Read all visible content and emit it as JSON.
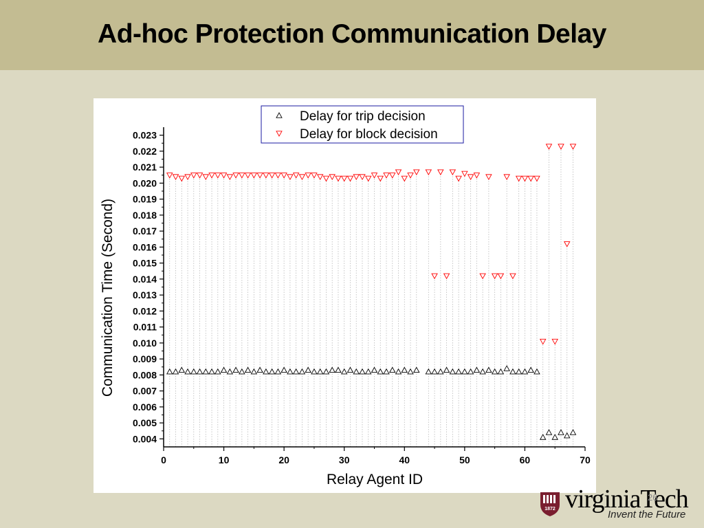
{
  "slide": {
    "title": "Ad-hoc Protection Communication Delay",
    "page_number": "26"
  },
  "logo": {
    "wordmark": "virginiaTech",
    "tagline": "Invent the Future",
    "seal_year": "1872"
  },
  "colors": {
    "title_bar": "#c3bc92",
    "background": "#dcd9c2",
    "trip_series": "#000000",
    "block_series": "#ff0000",
    "legend_border": "#1a1aa0",
    "logo_maroon": "#7a1e2f"
  },
  "chart_data": {
    "type": "scatter",
    "title": "",
    "xlabel": "Relay Agent ID",
    "ylabel": "Communication Time (Second)",
    "xlim": [
      0,
      70
    ],
    "ylim": [
      0.0035,
      0.0235
    ],
    "xticks": [
      0,
      10,
      20,
      30,
      40,
      50,
      60,
      70
    ],
    "yticks": [
      "0.004",
      "0.005",
      "0.006",
      "0.007",
      "0.008",
      "0.009",
      "0.010",
      "0.011",
      "0.012",
      "0.013",
      "0.014",
      "0.015",
      "0.016",
      "0.017",
      "0.018",
      "0.019",
      "0.020",
      "0.021",
      "0.022",
      "0.023"
    ],
    "grid": "vertical dotted drop lines at each relay agent",
    "legend_position": "top-center",
    "series": [
      {
        "name": "Delay for trip decision",
        "marker": "triangle-up",
        "color": "#000000",
        "x": [
          1,
          2,
          3,
          4,
          5,
          6,
          7,
          8,
          9,
          10,
          11,
          12,
          13,
          14,
          15,
          16,
          17,
          18,
          19,
          20,
          21,
          22,
          23,
          24,
          25,
          26,
          27,
          28,
          29,
          30,
          31,
          32,
          33,
          34,
          35,
          36,
          37,
          38,
          39,
          40,
          41,
          42,
          44,
          45,
          46,
          47,
          48,
          49,
          50,
          51,
          52,
          53,
          54,
          55,
          56,
          57,
          58,
          59,
          60,
          61,
          62,
          63,
          64,
          65,
          66,
          67,
          68
        ],
        "y": [
          0.0082,
          0.0082,
          0.0083,
          0.0082,
          0.0082,
          0.0082,
          0.0082,
          0.0082,
          0.0082,
          0.0083,
          0.0082,
          0.0083,
          0.0082,
          0.0083,
          0.0082,
          0.0083,
          0.0082,
          0.0082,
          0.0082,
          0.0083,
          0.0082,
          0.0082,
          0.0082,
          0.0083,
          0.0082,
          0.0082,
          0.0082,
          0.0083,
          0.0083,
          0.0082,
          0.0083,
          0.0082,
          0.0082,
          0.0082,
          0.0083,
          0.0082,
          0.0082,
          0.0083,
          0.0082,
          0.0083,
          0.0082,
          0.0083,
          0.0082,
          0.0082,
          0.0082,
          0.0083,
          0.0082,
          0.0082,
          0.0082,
          0.0082,
          0.0083,
          0.0082,
          0.0083,
          0.0082,
          0.0082,
          0.0084,
          0.0082,
          0.0082,
          0.0082,
          0.0083,
          0.0082,
          0.0041,
          0.0044,
          0.0041,
          0.0044,
          0.0042,
          0.0044
        ]
      },
      {
        "name": "Delay for block decision",
        "marker": "triangle-down",
        "color": "#ff0000",
        "x": [
          1,
          2,
          3,
          4,
          5,
          6,
          7,
          8,
          9,
          10,
          11,
          12,
          13,
          14,
          15,
          16,
          17,
          18,
          19,
          20,
          21,
          22,
          23,
          24,
          25,
          26,
          27,
          28,
          29,
          30,
          31,
          32,
          33,
          34,
          35,
          36,
          37,
          38,
          39,
          40,
          41,
          42,
          44,
          45,
          46,
          47,
          48,
          49,
          50,
          51,
          52,
          53,
          54,
          55,
          56,
          57,
          58,
          59,
          60,
          61,
          62,
          63,
          64,
          65,
          66,
          67,
          68
        ],
        "y": [
          0.0205,
          0.0204,
          0.0203,
          0.0204,
          0.0205,
          0.0205,
          0.0204,
          0.0205,
          0.0205,
          0.0205,
          0.0204,
          0.0205,
          0.0205,
          0.0205,
          0.0205,
          0.0205,
          0.0205,
          0.0205,
          0.0205,
          0.0205,
          0.0204,
          0.0205,
          0.0204,
          0.0205,
          0.0205,
          0.0204,
          0.0203,
          0.0204,
          0.0203,
          0.0203,
          0.0203,
          0.0204,
          0.0204,
          0.0203,
          0.0205,
          0.0203,
          0.0205,
          0.0205,
          0.0207,
          0.0203,
          0.0205,
          0.0207,
          0.0207,
          0.0142,
          0.0207,
          0.0142,
          0.0207,
          0.0203,
          0.0206,
          0.0204,
          0.0205,
          0.0142,
          0.0204,
          0.0142,
          0.0142,
          0.0204,
          0.0142,
          0.0203,
          0.0203,
          0.0203,
          0.0203,
          0.0101,
          0.0223,
          0.0101,
          0.0223,
          0.0162,
          0.0223
        ]
      }
    ]
  }
}
